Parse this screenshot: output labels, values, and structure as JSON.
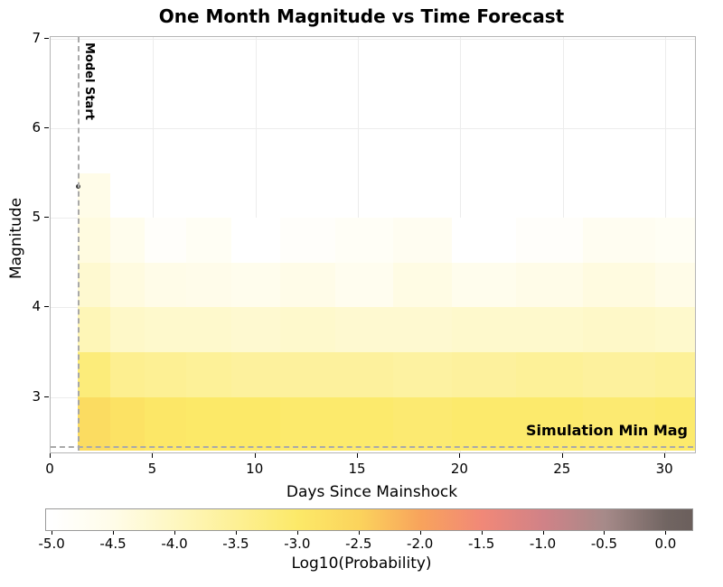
{
  "chart_data": {
    "type": "heatmap",
    "title": "One Month Magnitude vs Time Forecast",
    "xlabel": "Days Since Mainshock",
    "ylabel": "Magnitude",
    "xlim": [
      0,
      31.45
    ],
    "ylim": [
      2.38,
      7.02
    ],
    "xticks": [
      0,
      5,
      10,
      15,
      20,
      25,
      30
    ],
    "yticks": [
      3,
      4,
      5,
      6,
      7
    ],
    "grid": true,
    "x_bin_edges_days": [
      1.32,
      2.9,
      4.6,
      6.6,
      8.8,
      11.2,
      13.9,
      16.7,
      19.6,
      22.7,
      26.0,
      29.5,
      31.45
    ],
    "y_bin_edges_mag": [
      2.4,
      3.0,
      3.5,
      4.0,
      4.5,
      5.0,
      5.5
    ],
    "row_order": "bottom_to_top",
    "values": [
      [
        -2.7,
        -2.85,
        -2.95,
        -3.0,
        -3.0,
        -3.05,
        -3.05,
        -3.1,
        -3.05,
        -3.05,
        -3.1,
        -3.05
      ],
      [
        -3.2,
        -3.45,
        -3.5,
        -3.55,
        -3.6,
        -3.6,
        -3.6,
        -3.65,
        -3.6,
        -3.55,
        -3.6,
        -3.55
      ],
      [
        -3.9,
        -4.1,
        -4.15,
        -4.15,
        -4.2,
        -4.15,
        -4.2,
        -4.2,
        -4.15,
        -4.15,
        -4.1,
        -4.15
      ],
      [
        -4.2,
        -4.4,
        -4.5,
        -4.55,
        -4.6,
        -4.5,
        -4.65,
        -4.45,
        -4.6,
        -4.5,
        -4.4,
        -4.5
      ],
      [
        -4.4,
        -4.6,
        -4.9,
        -4.75,
        -5.0,
        -4.9,
        -4.8,
        -4.7,
        -5.0,
        -4.9,
        -4.7,
        -4.75
      ],
      [
        -4.5,
        null,
        null,
        null,
        null,
        null,
        null,
        null,
        null,
        null,
        null,
        null
      ]
    ],
    "model_start_day": 1.32,
    "sim_min_mag": 2.45,
    "mainshock": {
      "day": 1.35,
      "magnitude": 5.35
    },
    "annotations": {
      "model_start": "Model Start",
      "sim_min_mag": "Simulation Min Mag"
    },
    "colorbar": {
      "label": "Log10(Probability)",
      "range": [
        -5,
        0
      ],
      "ticks": [
        "-5.0",
        "-4.5",
        "-4.0",
        "-3.5",
        "-3.0",
        "-2.5",
        "-2.0",
        "-1.5",
        "-1.0",
        "-0.5",
        "0.0"
      ],
      "stops": [
        {
          "v": -5.0,
          "c": "#ffffff"
        },
        {
          "v": -4.5,
          "c": "#fffce8"
        },
        {
          "v": -4.0,
          "c": "#fef7c0"
        },
        {
          "v": -3.5,
          "c": "#fdf094"
        },
        {
          "v": -3.0,
          "c": "#fce968"
        },
        {
          "v": -2.5,
          "c": "#fbd35c"
        },
        {
          "v": -2.0,
          "c": "#f8a35c"
        },
        {
          "v": -1.5,
          "c": "#f18878"
        },
        {
          "v": -1.0,
          "c": "#d08287"
        },
        {
          "v": -0.5,
          "c": "#a68a89"
        },
        {
          "v": 0.0,
          "c": "#716562"
        }
      ],
      "over_color": "#6b5f5c"
    }
  }
}
